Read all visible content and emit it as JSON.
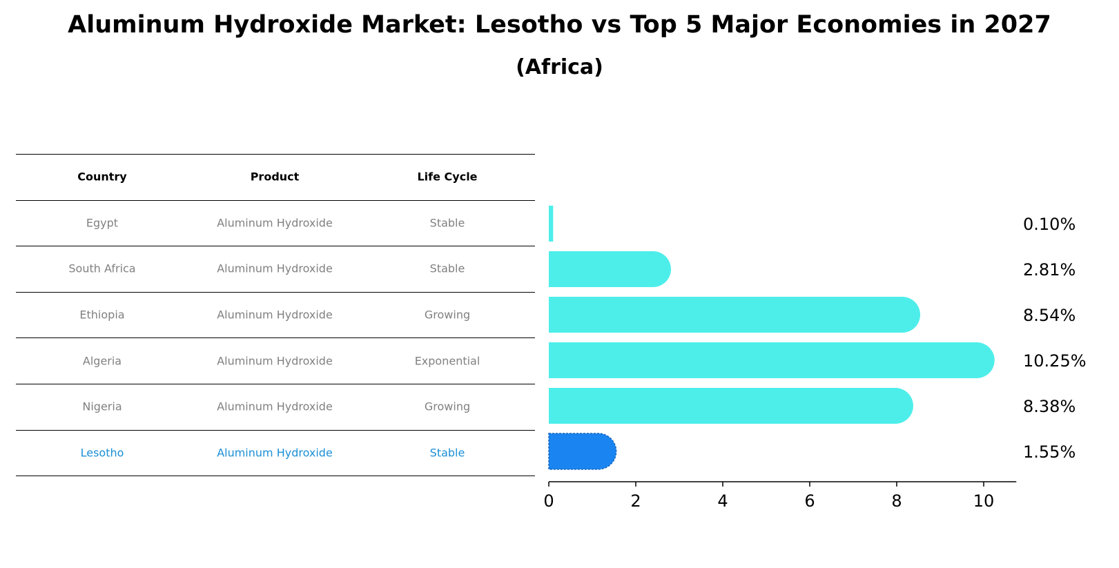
{
  "title": "Aluminum Hydroxide Market: Lesotho vs Top 5 Major Economies in 2027",
  "subtitle": "(Africa)",
  "table": {
    "headers": [
      "Country",
      "Product",
      "Life Cycle"
    ],
    "rows": [
      {
        "country": "Egypt",
        "product": "Aluminum Hydroxide",
        "life_cycle": "Stable",
        "highlight": false
      },
      {
        "country": "South Africa",
        "product": "Aluminum Hydroxide",
        "life_cycle": "Stable",
        "highlight": false
      },
      {
        "country": "Ethiopia",
        "product": "Aluminum Hydroxide",
        "life_cycle": "Growing",
        "highlight": false
      },
      {
        "country": "Algeria",
        "product": "Aluminum Hydroxide",
        "life_cycle": "Exponential",
        "highlight": false
      },
      {
        "country": "Nigeria",
        "product": "Aluminum Hydroxide",
        "life_cycle": "Growing",
        "highlight": false
      },
      {
        "country": "Lesotho",
        "product": "Aluminum Hydroxide",
        "life_cycle": "Stable",
        "highlight": true
      }
    ]
  },
  "chart_data": {
    "type": "bar",
    "orientation": "horizontal",
    "categories": [
      "Egypt",
      "South Africa",
      "Ethiopia",
      "Algeria",
      "Nigeria",
      "Lesotho"
    ],
    "values": [
      0.1,
      2.81,
      8.54,
      10.25,
      8.38,
      1.55
    ],
    "value_labels": [
      "0.10%",
      "2.81%",
      "8.54%",
      "10.25%",
      "8.38%",
      "1.55%"
    ],
    "xlim": [
      0,
      10.75
    ],
    "xticks": [
      0,
      2,
      4,
      6,
      8,
      10
    ],
    "xlabel": "",
    "ylabel": "",
    "grid": false,
    "colors": {
      "default": "#4deeea",
      "highlight": "#1a85f0"
    },
    "highlight_category": "Lesotho"
  }
}
